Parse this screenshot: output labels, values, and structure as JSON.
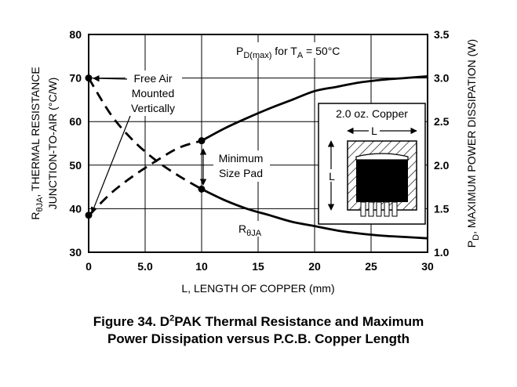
{
  "chart_data": {
    "type": "line",
    "xlabel": "L, LENGTH OF COPPER (mm)",
    "ylabel_left_line1": "THERMAL RESISTANCE",
    "ylabel_left_line2": "JUNCTION-TO-AIR (°C/W)",
    "ylabel_left_symbol": "R",
    "ylabel_left_sub": "θJA",
    "ylabel_right_symbol": "P",
    "ylabel_right_sub": "D",
    "ylabel_right_text": ", MAXIMUM POWER DISSIPATION (W)",
    "xlim": [
      0,
      30
    ],
    "ylim_left": [
      30,
      80
    ],
    "ylim_right": [
      1.0,
      3.5
    ],
    "x_ticks": [
      0,
      5,
      10,
      15,
      20,
      25,
      30
    ],
    "x_tick_labels": [
      "0",
      "5.0",
      "10",
      "15",
      "20",
      "25",
      "30"
    ],
    "y_left_ticks": [
      30,
      40,
      50,
      60,
      70,
      80
    ],
    "y_left_tick_labels": [
      "30",
      "40",
      "50",
      "60",
      "70",
      "80"
    ],
    "y_right_ticks": [
      1.0,
      1.5,
      2.0,
      2.5,
      3.0,
      3.5
    ],
    "y_right_tick_labels": [
      "1.0",
      "1.5",
      "2.0",
      "2.5",
      "3.0",
      "3.5"
    ],
    "grid": true,
    "series": [
      {
        "name": "RθJA",
        "axis": "left",
        "x": [
          0,
          2,
          4,
          6,
          8,
          10,
          12,
          14,
          16,
          18,
          20,
          22,
          24,
          26,
          28,
          30
        ],
        "values": [
          70,
          61.5,
          55.5,
          51,
          47.5,
          44.5,
          42,
          40,
          38.5,
          37,
          36,
          35,
          34.3,
          33.8,
          33.5,
          33.2
        ],
        "dashed_until_x": 10
      },
      {
        "name": "PD(max)",
        "axis": "right",
        "x": [
          0,
          2,
          4,
          6,
          8,
          10,
          12,
          14,
          16,
          18,
          20,
          22,
          24,
          26,
          28,
          30
        ],
        "values": [
          1.42,
          1.68,
          1.88,
          2.05,
          2.2,
          2.28,
          2.42,
          2.54,
          2.65,
          2.75,
          2.85,
          2.9,
          2.95,
          2.98,
          3.0,
          3.02
        ],
        "dashed_until_x": 10
      }
    ],
    "markers": [
      {
        "x": 0,
        "y": 70,
        "axis": "left"
      },
      {
        "x": 0,
        "y": 38.5,
        "axis": "left"
      },
      {
        "x": 10,
        "y": 44.5,
        "axis": "left"
      },
      {
        "x": 10,
        "y": 2.28,
        "axis": "right"
      }
    ],
    "annotations": {
      "pd_label_main": "P",
      "pd_label_sub": "D(max)",
      "pd_label_mid": " for T",
      "pd_label_sub2": "A",
      "pd_label_end": " = 50°C",
      "free_air_line1": "Free Air",
      "free_air_line2": "Mounted",
      "free_air_line3": "Vertically",
      "min_pad_line1": "Minimum",
      "min_pad_line2": "Size Pad",
      "rja_label_main": "R",
      "rja_label_sub": "θJA",
      "inset_title": "2.0 oz. Copper",
      "inset_dim_h": "L",
      "inset_dim_v": "L"
    }
  },
  "caption": {
    "line1_a": "Figure 34. D",
    "line1_sup": "2",
    "line1_b": "PAK Thermal Resistance and Maximum",
    "line2": "Power Dissipation versus P.C.B. Copper Length"
  }
}
